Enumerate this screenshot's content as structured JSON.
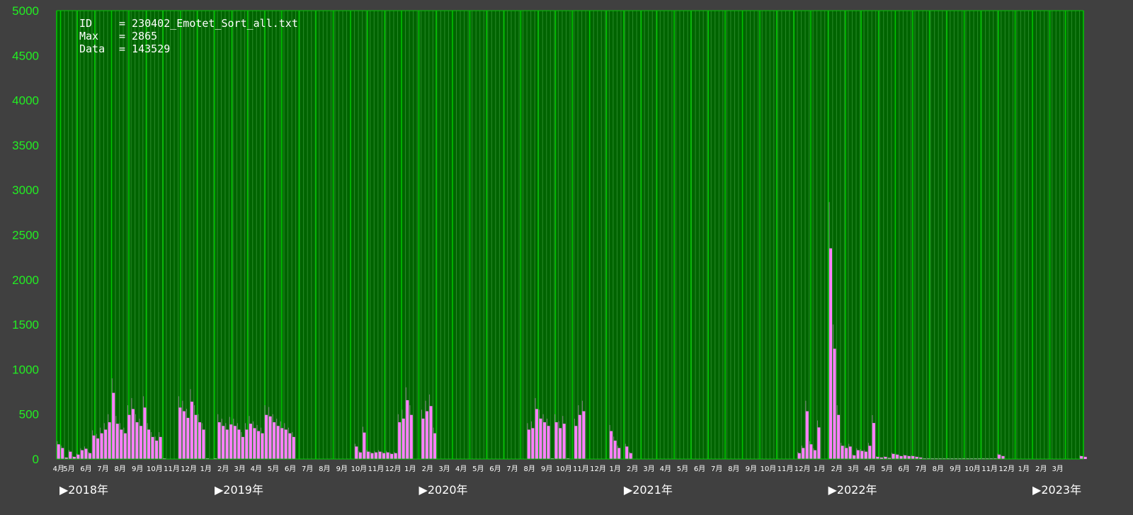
{
  "info": {
    "id_label": "ID",
    "id_value": "= 230402_Emotet_Sort_all.txt",
    "max_label": "Max",
    "max_value": "= 2865",
    "data_label": "Data",
    "data_value": "= 143529"
  },
  "colors": {
    "background": "#404040",
    "plot_background": "#006400",
    "month_grid": "#00c800",
    "week_grid": "#2a8a2a",
    "bar": "#ff80ff",
    "bar_tip": "#808080",
    "tick_text": "#22ee22",
    "label_text": "#ffffff"
  },
  "chart_data": {
    "type": "bar",
    "title": "",
    "xlabel": "",
    "ylabel": "",
    "ylim": [
      0,
      5000
    ],
    "yticks": [
      "0",
      "500",
      "1000",
      "1500",
      "2000",
      "2500",
      "3000",
      "3500",
      "4000",
      "4500",
      "5000"
    ],
    "x_range": [
      "2018-03-25",
      "2023-04-02"
    ],
    "bin": "week",
    "grid": "vertical",
    "month_labels": [
      "4月",
      "5月",
      "6月",
      "7月",
      "8月",
      "9月",
      "10月",
      "11月",
      "12月",
      "1月",
      "2月",
      "3月",
      "4月",
      "5月",
      "6月",
      "7月",
      "8月",
      "9月",
      "10月",
      "11月",
      "12月",
      "1月",
      "2月",
      "3月",
      "4月",
      "5月",
      "6月",
      "7月",
      "8月",
      "9月",
      "10月",
      "11月",
      "12月",
      "1月",
      "2月",
      "3月",
      "4月",
      "5月",
      "6月",
      "7月",
      "8月",
      "9月",
      "10月",
      "11月",
      "12月",
      "1月",
      "2月",
      "3月",
      "4月",
      "5月",
      "6月",
      "7月",
      "8月",
      "9月",
      "10月",
      "11月",
      "12月",
      "1月",
      "2月",
      "3月"
    ],
    "year_labels": [
      "▶2018年",
      "▶2019年",
      "▶2020年",
      "▶2021年",
      "▶2022年",
      "▶2023年"
    ],
    "values": [
      200,
      150,
      20,
      100,
      30,
      60,
      120,
      140,
      80,
      320,
      280,
      350,
      400,
      500,
      900,
      480,
      400,
      350,
      600,
      680,
      500,
      450,
      700,
      400,
      300,
      250,
      300,
      10,
      5,
      5,
      5,
      700,
      650,
      560,
      780,
      600,
      500,
      400,
      10,
      5,
      10,
      500,
      450,
      400,
      470,
      450,
      400,
      300,
      400,
      480,
      420,
      380,
      350,
      600,
      580,
      500,
      450,
      420,
      400,
      350,
      300,
      5,
      5,
      5,
      5,
      5,
      5,
      5,
      5,
      5,
      5,
      5,
      5,
      5,
      5,
      5,
      170,
      90,
      360,
      100,
      80,
      90,
      100,
      80,
      90,
      70,
      80,
      500,
      550,
      800,
      600,
      5,
      5,
      550,
      650,
      720,
      350,
      5,
      5,
      5,
      5,
      5,
      5,
      5,
      5,
      5,
      5,
      5,
      5,
      5,
      5,
      5,
      5,
      5,
      5,
      5,
      5,
      5,
      5,
      5,
      400,
      420,
      680,
      550,
      500,
      450,
      10,
      500,
      420,
      480,
      10,
      5,
      450,
      600,
      650,
      5,
      5,
      5,
      5,
      5,
      5,
      380,
      250,
      150,
      5,
      170,
      80,
      5,
      5,
      5,
      5,
      5,
      5,
      5,
      5,
      5,
      5,
      5,
      5,
      5,
      5,
      5,
      5,
      5,
      5,
      5,
      5,
      5,
      5,
      5,
      5,
      5,
      5,
      5,
      5,
      5,
      5,
      5,
      5,
      5,
      5,
      5,
      5,
      5,
      5,
      5,
      5,
      5,
      5,
      80,
      150,
      650,
      200,
      120,
      430,
      5,
      5,
      2865,
      1500,
      600,
      180,
      150,
      170,
      50,
      120,
      110,
      100,
      180,
      490,
      30,
      20,
      30,
      15,
      70,
      60,
      40,
      50,
      40,
      40,
      30,
      20,
      10,
      10,
      10,
      10,
      10,
      10,
      10,
      10,
      10,
      10,
      10,
      10,
      10,
      10,
      10,
      10,
      10,
      10,
      10,
      60,
      40,
      5,
      5,
      5,
      5,
      5,
      5,
      5,
      5,
      5,
      5,
      5,
      5,
      5,
      5,
      5,
      5,
      5,
      5,
      5,
      40,
      30
    ]
  }
}
